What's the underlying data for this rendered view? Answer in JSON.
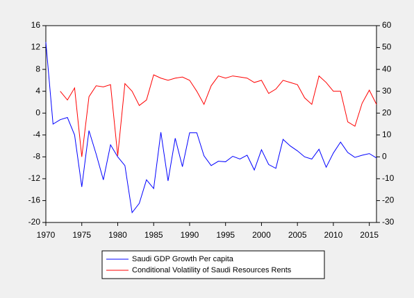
{
  "chart_data": {
    "type": "line",
    "x": [
      1970,
      1971,
      1972,
      1973,
      1974,
      1975,
      1976,
      1977,
      1978,
      1979,
      1980,
      1981,
      1982,
      1983,
      1984,
      1985,
      1986,
      1987,
      1988,
      1989,
      1990,
      1991,
      1992,
      1993,
      1994,
      1995,
      1996,
      1997,
      1998,
      1999,
      2000,
      2001,
      2002,
      2003,
      2004,
      2005,
      2006,
      2007,
      2008,
      2009,
      2010,
      2011,
      2012,
      2013,
      2014,
      2015,
      2016
    ],
    "xlim": [
      1970,
      2016
    ],
    "xticks": [
      1970,
      1975,
      1980,
      1985,
      1990,
      1995,
      2000,
      2005,
      2010,
      2015
    ],
    "ylim": [
      -20,
      16
    ],
    "yticks": [
      -20,
      -16,
      -12,
      -8,
      -4,
      0,
      4,
      8,
      12,
      16
    ],
    "y2lim": [
      -30,
      60
    ],
    "y2ticks": [
      -30,
      -20,
      -10,
      0,
      10,
      20,
      30,
      40,
      50,
      60
    ],
    "series": [
      {
        "name": "Saudi GDP Growth Per capita",
        "color": "#0000ff",
        "values": [
          13,
          -2,
          -1.2,
          -0.8,
          -4,
          -13.5,
          -3.2,
          -7.5,
          -12.2,
          -5.8,
          -8,
          -9.6,
          -18.2,
          -16.5,
          -12.2,
          -13.8,
          -3.5,
          -12.4,
          -4.6,
          -9.8,
          -3.6,
          -3.6,
          -7.8,
          -9.6,
          -8.8,
          -8.9,
          -7.9,
          -8.4,
          -7.7,
          -10.4,
          -6.7,
          -9.4,
          -10.1,
          -4.8,
          -6,
          -6.9,
          -8,
          -8.4,
          -6.6,
          -9.9,
          -7.3,
          -5.3,
          -7.2,
          -8.1,
          -7.7,
          -7.4,
          -8.2
        ]
      },
      {
        "name": "Conditional Volatility of Saudi Resources Rents",
        "color": "#ff0000",
        "axis": "y2",
        "values": [
          null,
          null,
          30,
          26,
          31.5,
          0,
          27.5,
          32.5,
          32,
          33,
          0.5,
          33.5,
          30,
          23.5,
          26,
          37.5,
          36,
          35,
          36,
          36.5,
          35,
          30,
          24,
          32.5,
          37,
          36,
          37,
          36.5,
          36,
          34,
          35,
          29,
          31,
          35,
          34,
          33,
          27,
          24,
          37,
          34,
          30,
          30,
          16,
          14,
          24.5,
          30.5,
          24
        ]
      }
    ],
    "legend": "bottom"
  }
}
